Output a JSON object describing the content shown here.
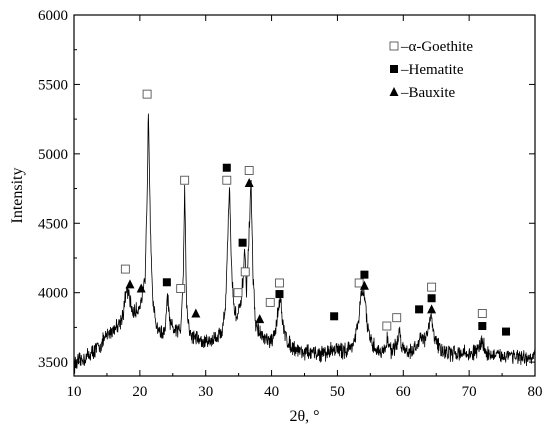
{
  "chart_data": {
    "type": "line",
    "title": "",
    "xlabel": "2θ, °",
    "ylabel": "Intensity",
    "xlim": [
      10,
      80
    ],
    "ylim": [
      3400,
      6000
    ],
    "x_ticks": [
      10,
      20,
      30,
      40,
      50,
      60,
      70,
      80
    ],
    "y_ticks": [
      3500,
      4000,
      4500,
      5000,
      5500,
      6000
    ],
    "line_color": "#000000",
    "legend_position": "top-right",
    "grid": false,
    "series": [
      {
        "profile": [
          [
            10,
            3480
          ],
          [
            11,
            3510
          ],
          [
            12,
            3540
          ],
          [
            13,
            3580
          ],
          [
            14,
            3620
          ],
          [
            15,
            3690
          ],
          [
            16,
            3740
          ],
          [
            17,
            3790
          ],
          [
            17.5,
            3860
          ],
          [
            18,
            4030
          ],
          [
            18.4,
            3960
          ],
          [
            19,
            3850
          ],
          [
            19.7,
            3880
          ],
          [
            20.3,
            3960
          ],
          [
            20.8,
            4080
          ],
          [
            21.1,
            4700
          ],
          [
            21.3,
            5330
          ],
          [
            21.6,
            4500
          ],
          [
            22,
            3900
          ],
          [
            22.5,
            3770
          ],
          [
            23,
            3720
          ],
          [
            23.8,
            3700
          ],
          [
            24.2,
            3980
          ],
          [
            24.6,
            3760
          ],
          [
            25.5,
            3720
          ],
          [
            26.2,
            3740
          ],
          [
            26.6,
            4150
          ],
          [
            26.8,
            4780
          ],
          [
            27.1,
            3900
          ],
          [
            27.6,
            3700
          ],
          [
            28.5,
            3680
          ],
          [
            29.5,
            3640
          ],
          [
            30.5,
            3650
          ],
          [
            31.5,
            3680
          ],
          [
            32.5,
            3720
          ],
          [
            33,
            3900
          ],
          [
            33.3,
            4330
          ],
          [
            33.6,
            4780
          ],
          [
            33.9,
            4200
          ],
          [
            34.3,
            3880
          ],
          [
            34.8,
            3830
          ],
          [
            35.3,
            3900
          ],
          [
            35.7,
            4120
          ],
          [
            35.9,
            4320
          ],
          [
            36.2,
            3990
          ],
          [
            36.6,
            4450
          ],
          [
            36.9,
            4770
          ],
          [
            37.2,
            4100
          ],
          [
            37.6,
            3760
          ],
          [
            38.3,
            3700
          ],
          [
            39,
            3660
          ],
          [
            40,
            3640
          ],
          [
            40.6,
            3720
          ],
          [
            41,
            3880
          ],
          [
            41.3,
            3990
          ],
          [
            41.7,
            3760
          ],
          [
            42.5,
            3640
          ],
          [
            43.5,
            3600
          ],
          [
            44.5,
            3580
          ],
          [
            45.5,
            3570
          ],
          [
            46.5,
            3560
          ],
          [
            47.5,
            3560
          ],
          [
            48.5,
            3570
          ],
          [
            49.5,
            3600
          ],
          [
            50.5,
            3580
          ],
          [
            51.5,
            3590
          ],
          [
            52.5,
            3640
          ],
          [
            53.2,
            3780
          ],
          [
            53.6,
            4000
          ],
          [
            54.1,
            3990
          ],
          [
            54.5,
            3780
          ],
          [
            55,
            3640
          ],
          [
            56,
            3590
          ],
          [
            57,
            3570
          ],
          [
            57.6,
            3660
          ],
          [
            58.2,
            3580
          ],
          [
            59,
            3620
          ],
          [
            59.4,
            3720
          ],
          [
            59.9,
            3600
          ],
          [
            61,
            3580
          ],
          [
            62,
            3600
          ],
          [
            62.6,
            3700
          ],
          [
            63.2,
            3660
          ],
          [
            63.8,
            3720
          ],
          [
            64.2,
            3840
          ],
          [
            64.6,
            3700
          ],
          [
            65.5,
            3600
          ],
          [
            66.5,
            3570
          ],
          [
            67.5,
            3560
          ],
          [
            68.5,
            3570
          ],
          [
            69.5,
            3560
          ],
          [
            70.5,
            3560
          ],
          [
            71.5,
            3600
          ],
          [
            72,
            3660
          ],
          [
            72.5,
            3570
          ],
          [
            73.5,
            3550
          ],
          [
            74.5,
            3540
          ],
          [
            75.5,
            3550
          ],
          [
            76.5,
            3560
          ],
          [
            77.5,
            3530
          ],
          [
            78.5,
            3520
          ],
          [
            79.5,
            3530
          ],
          [
            80,
            3540
          ]
        ]
      }
    ],
    "legend": [
      {
        "symbol": "open-square",
        "label": "–α-Goethite"
      },
      {
        "symbol": "filled-square",
        "label": "–Hematite"
      },
      {
        "symbol": "filled-triangle",
        "label": "–Bauxite"
      }
    ],
    "markers": [
      {
        "symbol": "open-square",
        "x": 17.8,
        "y": 4170
      },
      {
        "symbol": "filled-triangle",
        "x": 18.5,
        "y": 4060
      },
      {
        "symbol": "filled-triangle",
        "x": 20.2,
        "y": 4030
      },
      {
        "symbol": "open-square",
        "x": 21.1,
        "y": 5430
      },
      {
        "symbol": "filled-square",
        "x": 24.1,
        "y": 4075
      },
      {
        "symbol": "open-square",
        "x": 26.2,
        "y": 4030
      },
      {
        "symbol": "open-square",
        "x": 26.8,
        "y": 4810
      },
      {
        "symbol": "filled-triangle",
        "x": 28.5,
        "y": 3850
      },
      {
        "symbol": "filled-square",
        "x": 33.2,
        "y": 4900
      },
      {
        "symbol": "open-square",
        "x": 33.2,
        "y": 4810
      },
      {
        "symbol": "open-square",
        "x": 34.9,
        "y": 4000
      },
      {
        "symbol": "filled-square",
        "x": 35.6,
        "y": 4360
      },
      {
        "symbol": "open-square",
        "x": 36.0,
        "y": 4150
      },
      {
        "symbol": "open-square",
        "x": 36.6,
        "y": 4880
      },
      {
        "symbol": "filled-triangle",
        "x": 36.6,
        "y": 4790
      },
      {
        "symbol": "filled-triangle",
        "x": 38.2,
        "y": 3810
      },
      {
        "symbol": "open-square",
        "x": 39.8,
        "y": 3930
      },
      {
        "symbol": "open-square",
        "x": 41.2,
        "y": 4070
      },
      {
        "symbol": "filled-square",
        "x": 41.2,
        "y": 3990
      },
      {
        "symbol": "filled-square",
        "x": 49.5,
        "y": 3830
      },
      {
        "symbol": "open-square",
        "x": 53.3,
        "y": 4070
      },
      {
        "symbol": "filled-square",
        "x": 54.1,
        "y": 4130
      },
      {
        "symbol": "filled-triangle",
        "x": 54.1,
        "y": 4050
      },
      {
        "symbol": "open-square",
        "x": 57.5,
        "y": 3760
      },
      {
        "symbol": "open-square",
        "x": 59.0,
        "y": 3820
      },
      {
        "symbol": "filled-square",
        "x": 62.4,
        "y": 3880
      },
      {
        "symbol": "open-square",
        "x": 64.3,
        "y": 4040
      },
      {
        "symbol": "filled-square",
        "x": 64.3,
        "y": 3960
      },
      {
        "symbol": "filled-triangle",
        "x": 64.3,
        "y": 3880
      },
      {
        "symbol": "open-square",
        "x": 72.0,
        "y": 3850
      },
      {
        "symbol": "filled-square",
        "x": 72.0,
        "y": 3760
      },
      {
        "symbol": "filled-square",
        "x": 75.6,
        "y": 3720
      }
    ]
  }
}
